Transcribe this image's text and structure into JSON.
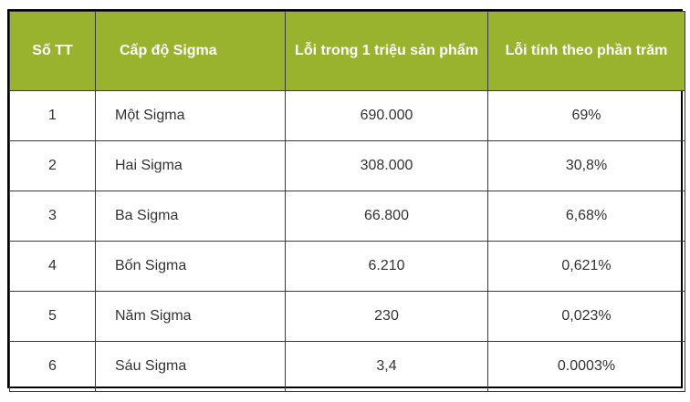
{
  "table": {
    "headers": [
      "Số TT",
      "Cấp độ Sigma",
      "Lỗi trong 1 triệu sản phẩm",
      "Lỗi tính theo phần trăm"
    ],
    "rows": [
      [
        "1",
        "Một Sigma",
        "690.000",
        "69%"
      ],
      [
        "2",
        "Hai Sigma",
        "308.000",
        "30,8%"
      ],
      [
        "3",
        "Ba Sigma",
        "66.800",
        "6,68%"
      ],
      [
        "4",
        "Bốn Sigma",
        "6.210",
        "0,621%"
      ],
      [
        "5",
        "Năm Sigma",
        "230",
        "0,023%"
      ],
      [
        "6",
        "Sáu Sigma",
        "3,4",
        "0.0003%"
      ]
    ],
    "header_color": "#99b32e"
  }
}
